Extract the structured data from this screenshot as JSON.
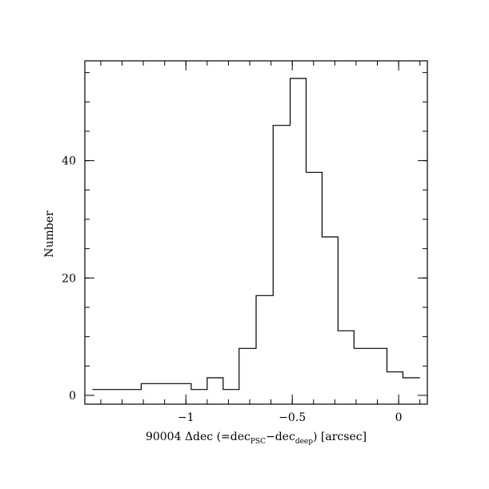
{
  "chart_data": {
    "type": "histogram",
    "title": "",
    "xlabel": {
      "prefix": "90004 Δdec (=dec",
      "sub1": "PSC",
      "middle": "−dec",
      "sub2": "deep",
      "suffix": ") [arcsec]"
    },
    "ylabel": "Number",
    "xlim": [
      -1.475,
      0.135
    ],
    "ylim": [
      -1.5,
      57
    ],
    "x_major_ticks": [
      {
        "value": -1,
        "label": "−1"
      },
      {
        "value": -0.5,
        "label": "−0.5"
      },
      {
        "value": 0,
        "label": "0"
      }
    ],
    "x_minor_step": 0.1,
    "y_major_ticks": [
      {
        "value": 0,
        "label": "0"
      },
      {
        "value": 20,
        "label": "20"
      },
      {
        "value": 40,
        "label": "40"
      }
    ],
    "y_minor_step": 5,
    "bin_edges": [
      -1.44,
      -1.21,
      -0.975,
      -0.9,
      -0.825,
      -0.75,
      -0.67,
      -0.59,
      -0.51,
      -0.435,
      -0.36,
      -0.285,
      -0.21,
      -0.055,
      0.02,
      0.1
    ],
    "counts": [
      1,
      2,
      1,
      3,
      1,
      8,
      17,
      46,
      54,
      38,
      27,
      11,
      8,
      4,
      3
    ],
    "grid": false,
    "legend": "none"
  }
}
